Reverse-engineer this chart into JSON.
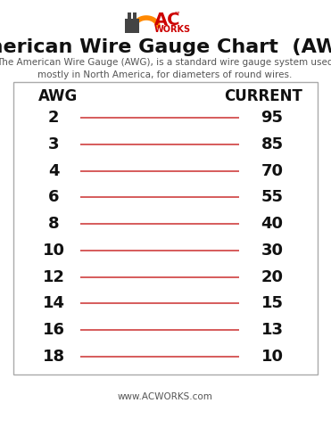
{
  "title": "American Wire Gauge Chart  (AWG)",
  "subtitle": "The American Wire Gauge (AWG), is a standard wire gauge system used\nmostly in North America, for diameters of round wires.",
  "col_left": "AWG",
  "col_right": "CURRENT",
  "footer": "www.ACWORKS.com",
  "gauges": [
    "2",
    "3",
    "4",
    "6",
    "8",
    "10",
    "12",
    "14",
    "16",
    "18"
  ],
  "currents": [
    "95",
    "85",
    "70",
    "55",
    "40",
    "30",
    "20",
    "15",
    "13",
    "10"
  ],
  "line_color": "#d04040",
  "box_border_color": "#aaaaaa",
  "background_color": "#ffffff",
  "title_color": "#111111",
  "subtitle_color": "#555555",
  "gauge_fontsize": 13,
  "current_fontsize": 13,
  "header_fontsize": 12,
  "title_fontsize": 16,
  "subtitle_fontsize": 7.5,
  "footer_fontsize": 7.5,
  "line_width": 1.2,
  "ac_color": "#cc0000",
  "works_color": "#cc0000",
  "orange_color": "#ff8800",
  "plug_color": "#444444"
}
